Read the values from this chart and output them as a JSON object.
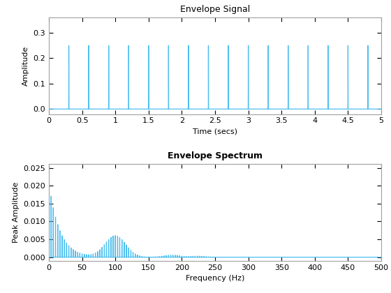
{
  "title1": "Envelope Signal",
  "xlabel1": "Time (secs)",
  "ylabel1": "Amplitude",
  "xlim1": [
    0,
    5
  ],
  "ylim1": [
    -0.02,
    0.36
  ],
  "yticks1": [
    0,
    0.1,
    0.2,
    0.3
  ],
  "xticks1": [
    0,
    0.5,
    1.0,
    1.5,
    2.0,
    2.5,
    3.0,
    3.5,
    4.0,
    4.5,
    5.0
  ],
  "title2": "Envelope Spectrum",
  "xlabel2": "Frequency (Hz)",
  "ylabel2": "Peak Amplitude",
  "xlim2": [
    0,
    500
  ],
  "ylim2": [
    -0.001,
    0.026
  ],
  "yticks2": [
    0,
    0.005,
    0.01,
    0.015,
    0.02,
    0.025
  ],
  "xticks2": [
    0,
    50,
    100,
    150,
    200,
    250,
    300,
    350,
    400,
    450,
    500
  ],
  "line_color": "#4DBEEE",
  "bg_color": "#ffffff",
  "axes_bg": "#f5f5f5",
  "fs": 1000,
  "duration": 5,
  "spike_rate": 3.3333,
  "spike_amp": 0.25,
  "title_fontsize": 9,
  "label_fontsize": 8,
  "tick_fontsize": 8
}
